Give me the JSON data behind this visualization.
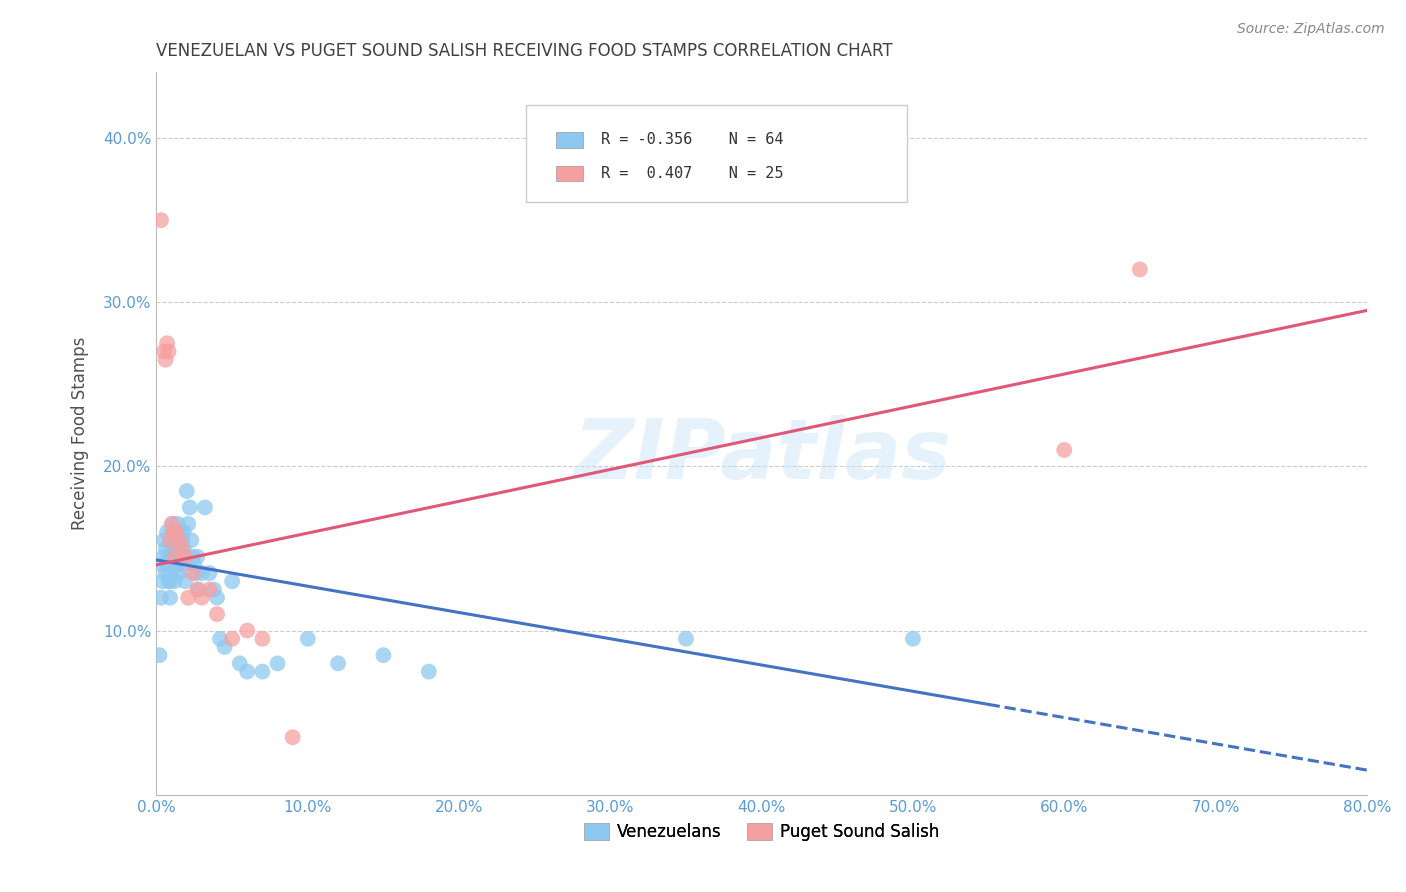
{
  "title": "VENEZUELAN VS PUGET SOUND SALISH RECEIVING FOOD STAMPS CORRELATION CHART",
  "source": "Source: ZipAtlas.com",
  "ylabel": "Receiving Food Stamps",
  "xlabel_ticks": [
    "0.0%",
    "10.0%",
    "20.0%",
    "30.0%",
    "40.0%",
    "50.0%",
    "60.0%",
    "70.0%",
    "80.0%"
  ],
  "ytick_labels": [
    "10.0%",
    "20.0%",
    "30.0%",
    "40.0%"
  ],
  "xlim": [
    0.0,
    0.8
  ],
  "ylim": [
    0.0,
    0.44
  ],
  "venezuelan_color": "#8EC8F0",
  "puget_color": "#F5A0A0",
  "trend_blue": "#4472C4",
  "trend_pink": "#E05878",
  "axis_color": "#5B9BD5",
  "watermark": "ZIPatlas",
  "venezuelan_x": [
    0.002,
    0.003,
    0.004,
    0.004,
    0.005,
    0.005,
    0.006,
    0.006,
    0.007,
    0.007,
    0.008,
    0.008,
    0.009,
    0.009,
    0.009,
    0.01,
    0.01,
    0.01,
    0.011,
    0.011,
    0.012,
    0.012,
    0.012,
    0.013,
    0.013,
    0.014,
    0.014,
    0.015,
    0.015,
    0.016,
    0.016,
    0.017,
    0.017,
    0.018,
    0.018,
    0.019,
    0.019,
    0.02,
    0.021,
    0.022,
    0.023,
    0.024,
    0.025,
    0.026,
    0.027,
    0.028,
    0.03,
    0.032,
    0.035,
    0.038,
    0.04,
    0.042,
    0.045,
    0.05,
    0.055,
    0.06,
    0.07,
    0.08,
    0.1,
    0.12,
    0.15,
    0.18,
    0.35,
    0.5
  ],
  "venezuelan_y": [
    0.085,
    0.12,
    0.14,
    0.13,
    0.145,
    0.155,
    0.135,
    0.15,
    0.16,
    0.14,
    0.13,
    0.145,
    0.155,
    0.13,
    0.12,
    0.16,
    0.145,
    0.135,
    0.165,
    0.15,
    0.155,
    0.14,
    0.13,
    0.145,
    0.16,
    0.165,
    0.14,
    0.15,
    0.135,
    0.16,
    0.145,
    0.155,
    0.14,
    0.16,
    0.15,
    0.145,
    0.13,
    0.185,
    0.165,
    0.175,
    0.155,
    0.145,
    0.14,
    0.135,
    0.145,
    0.125,
    0.135,
    0.175,
    0.135,
    0.125,
    0.12,
    0.095,
    0.09,
    0.13,
    0.08,
    0.075,
    0.075,
    0.08,
    0.095,
    0.08,
    0.085,
    0.075,
    0.095,
    0.095
  ],
  "puget_x": [
    0.003,
    0.005,
    0.006,
    0.007,
    0.008,
    0.009,
    0.01,
    0.011,
    0.012,
    0.013,
    0.015,
    0.017,
    0.019,
    0.021,
    0.024,
    0.027,
    0.03,
    0.035,
    0.04,
    0.05,
    0.06,
    0.07,
    0.09,
    0.6,
    0.65
  ],
  "puget_y": [
    0.35,
    0.27,
    0.265,
    0.275,
    0.27,
    0.155,
    0.165,
    0.16,
    0.145,
    0.16,
    0.155,
    0.15,
    0.145,
    0.12,
    0.135,
    0.125,
    0.12,
    0.125,
    0.11,
    0.095,
    0.1,
    0.095,
    0.035,
    0.21,
    0.32
  ],
  "trend_blue_x0": 0.0,
  "trend_blue_y0": 0.143,
  "trend_blue_x1": 0.55,
  "trend_blue_y1": 0.055,
  "trend_blue_x_dash0": 0.55,
  "trend_blue_y_dash0": 0.055,
  "trend_blue_x_dash1": 0.8,
  "trend_blue_y_dash1": 0.015,
  "trend_pink_x0": 0.0,
  "trend_pink_y0": 0.14,
  "trend_pink_x1": 0.8,
  "trend_pink_y1": 0.295
}
